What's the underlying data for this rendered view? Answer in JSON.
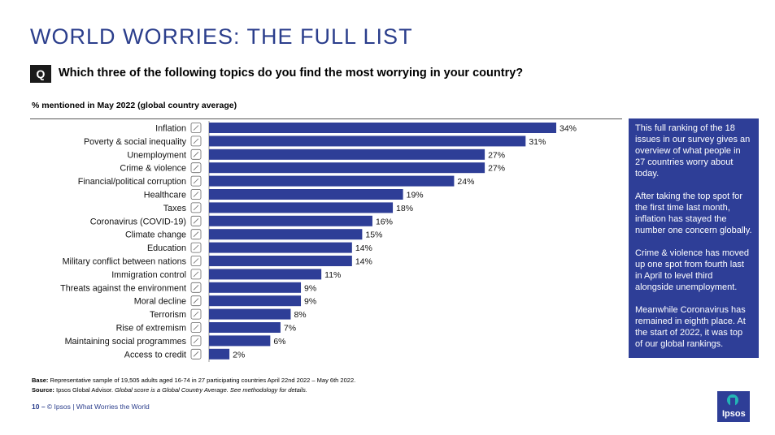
{
  "title": "WORLD WORRIES: THE FULL LIST",
  "question_badge": "Q",
  "question": "Which three of the following topics do you find the most worrying in your country?",
  "subtitle": "% mentioned in May 2022 (global country average)",
  "colors": {
    "bar": "#2e3e97",
    "title": "#2b3e8c",
    "side_box": "#2e3e97"
  },
  "chart_data": {
    "type": "bar",
    "orientation": "horizontal",
    "title": "% mentioned in May 2022 (global country average)",
    "categories": [
      "Inflation",
      "Poverty & social inequality",
      "Unemployment",
      "Crime & violence",
      "Financial/political corruption",
      "Healthcare",
      "Taxes",
      "Coronavirus (COVID-19)",
      "Climate change",
      "Education",
      "Military conflict between nations",
      "Immigration control",
      "Threats against the environment",
      "Moral decline",
      "Terrorism",
      "Rise of extremism",
      "Maintaining social programmes",
      "Access to credit"
    ],
    "icons": [
      "chart-icon",
      "poverty-icon",
      "briefcase-icon",
      "crime-icon",
      "corruption-icon",
      "healthcare-icon",
      "taxes-icon",
      "warning-icon",
      "climate-icon",
      "education-icon",
      "globe-icon",
      "immigration-icon",
      "environment-icon",
      "moral-icon",
      "terrorism-icon",
      "extremism-icon",
      "social-icon",
      "credit-icon"
    ],
    "values": [
      34,
      31,
      27,
      27,
      24,
      19,
      18,
      16,
      15,
      14,
      14,
      11,
      9,
      9,
      8,
      7,
      6,
      2
    ],
    "value_suffix": "%",
    "xlim": [
      0,
      34
    ]
  },
  "side_box": {
    "p1": "This full ranking of the 18 issues in our survey gives an overview of what people in 27 countries worry about today.",
    "p2": "After taking the top spot for the first time last month, inflation has stayed the number one concern globally.",
    "p3": "Crime & violence has moved up one spot from fourth last in April to level third alongside unemployment.",
    "p4": "Meanwhile Coronavirus has remained in eighth place. At the start of 2022, it was top of our global rankings."
  },
  "footnotes": {
    "base_label": "Base:",
    "base_text": "Representative sample of 19,505 adults aged 16-74 in 27 participating countries April 22nd 2022 – May 6th 2022.",
    "source_label": "Source:",
    "source_text": "Ipsos Global Advisor.",
    "source_note": "Global score is a Global Country Average. See methodology for details."
  },
  "footer": {
    "page": "10 –",
    "text": "© Ipsos | What Worries the World"
  },
  "logo": "Ipsos"
}
